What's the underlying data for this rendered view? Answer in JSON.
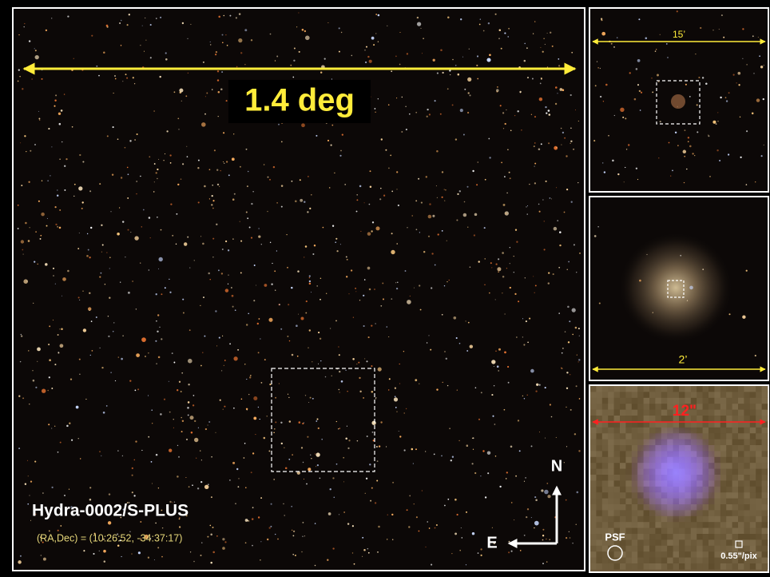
{
  "main_panel": {
    "scale_label": "1.4 deg",
    "field_name": "Hydra-0002/S-PLUS",
    "coordinates": "(RA,Dec) = (10:26:52, -34:37:17)",
    "compass": {
      "north": "N",
      "east": "E"
    }
  },
  "zoom_panels": [
    {
      "scale_label": "15’"
    },
    {
      "scale_label": "2’"
    },
    {
      "scale_label": "12\"",
      "psf_label": "PSF",
      "pixel_label": "0.55\"/pix"
    }
  ]
}
